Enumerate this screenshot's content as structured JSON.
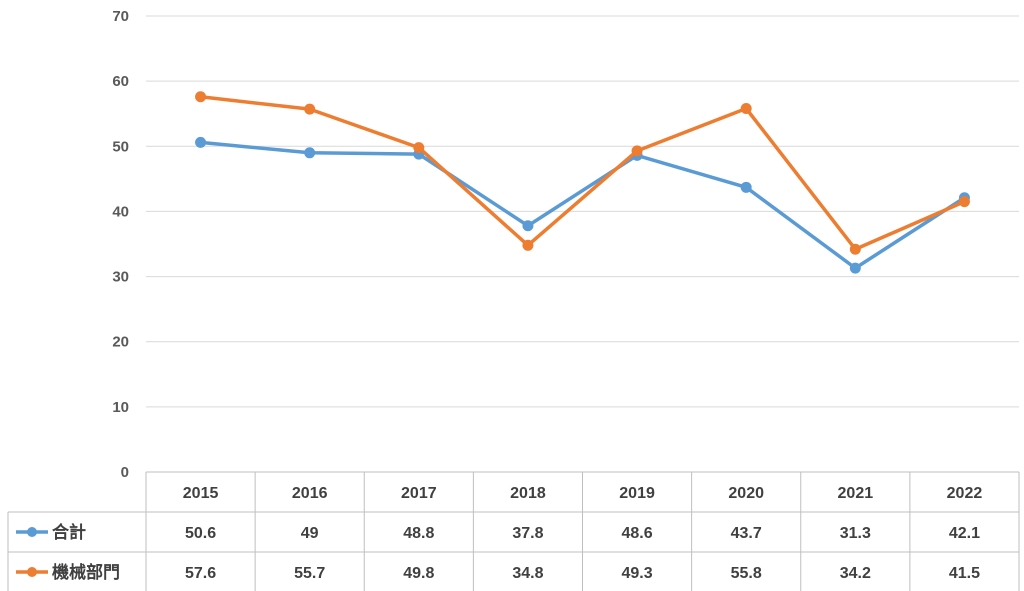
{
  "chart_data": {
    "type": "line",
    "categories": [
      "2015",
      "2016",
      "2017",
      "2018",
      "2019",
      "2020",
      "2021",
      "2022"
    ],
    "series": [
      {
        "name": "合計",
        "color": "#5B9BD5",
        "values": [
          50.6,
          49,
          48.8,
          37.8,
          48.6,
          43.7,
          31.3,
          42.1
        ]
      },
      {
        "name": "機械部門",
        "color": "#ED7D31",
        "values": [
          57.6,
          55.7,
          49.8,
          34.8,
          49.3,
          55.8,
          34.2,
          41.5
        ]
      }
    ],
    "ylim": [
      0,
      70
    ],
    "yticks": [
      0,
      10,
      20,
      30,
      40,
      50,
      60,
      70
    ],
    "grid": true,
    "legend": "data-table"
  }
}
